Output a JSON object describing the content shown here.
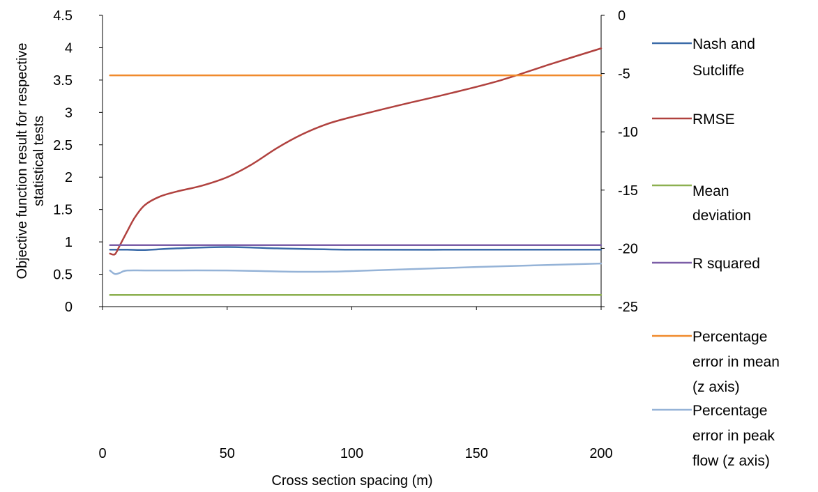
{
  "chart_data": {
    "type": "line",
    "title": "",
    "xlabel": "Cross section spacing (m)",
    "ylabel": [
      "Objective function result for respective",
      "statistical tests"
    ],
    "xlim": [
      0,
      200
    ],
    "ylim": [
      0,
      4.5
    ],
    "y2lim": [
      -25,
      0
    ],
    "xticks": [
      "0",
      "50",
      "100",
      "150",
      "200"
    ],
    "yticks": [
      "0",
      "0.5",
      "1",
      "1.5",
      "2",
      "2.5",
      "3",
      "3.5",
      "4",
      "4.5"
    ],
    "y2ticks": [
      "-25",
      "-20",
      "-15",
      "-10",
      "-5",
      "0"
    ],
    "grid": false,
    "legend_position": "right",
    "series": [
      {
        "name": [
          "Nash and",
          "Sutcliffe"
        ],
        "axis": "left",
        "color": "#3a6aa8",
        "points": [
          [
            3,
            0.88
          ],
          [
            10,
            0.88
          ],
          [
            17,
            0.875
          ],
          [
            30,
            0.9
          ],
          [
            50,
            0.92
          ],
          [
            70,
            0.9
          ],
          [
            100,
            0.88
          ],
          [
            150,
            0.88
          ],
          [
            200,
            0.88
          ]
        ]
      },
      {
        "name": [
          "RMSE"
        ],
        "axis": "left",
        "color": "#b0413e",
        "points": [
          [
            3,
            0.82
          ],
          [
            5,
            0.81
          ],
          [
            7,
            0.95
          ],
          [
            10,
            1.17
          ],
          [
            13,
            1.38
          ],
          [
            17,
            1.57
          ],
          [
            23,
            1.7
          ],
          [
            30,
            1.78
          ],
          [
            40,
            1.87
          ],
          [
            50,
            2.0
          ],
          [
            60,
            2.2
          ],
          [
            70,
            2.45
          ],
          [
            80,
            2.66
          ],
          [
            90,
            2.82
          ],
          [
            100,
            2.93
          ],
          [
            120,
            3.12
          ],
          [
            140,
            3.3
          ],
          [
            160,
            3.5
          ],
          [
            180,
            3.75
          ],
          [
            200,
            3.99
          ]
        ]
      },
      {
        "name": [
          "Mean",
          "deviation"
        ],
        "axis": "left",
        "color": "#8cb050",
        "points": [
          [
            3,
            0.18
          ],
          [
            200,
            0.18
          ]
        ]
      },
      {
        "name": [
          "R squared"
        ],
        "axis": "left",
        "color": "#7b5ea7",
        "points": [
          [
            3,
            0.95
          ],
          [
            200,
            0.95
          ]
        ]
      },
      {
        "name": [
          "Percentage",
          "error in mean",
          "(z axis)"
        ],
        "axis": "right",
        "color": "#f08a2c",
        "points": [
          [
            3,
            -5.15
          ],
          [
            200,
            -5.15
          ]
        ]
      },
      {
        "name": [
          "Percentage",
          "error in peak",
          "flow (z axis)"
        ],
        "axis": "right",
        "color": "#95b3d7",
        "points": [
          [
            3,
            -21.9
          ],
          [
            5,
            -22.2
          ],
          [
            7,
            -22.1
          ],
          [
            10,
            -21.9
          ],
          [
            20,
            -21.9
          ],
          [
            50,
            -21.9
          ],
          [
            75,
            -22.0
          ],
          [
            90,
            -22.0
          ],
          [
            100,
            -21.95
          ],
          [
            150,
            -21.6
          ],
          [
            200,
            -21.3
          ]
        ]
      }
    ]
  }
}
